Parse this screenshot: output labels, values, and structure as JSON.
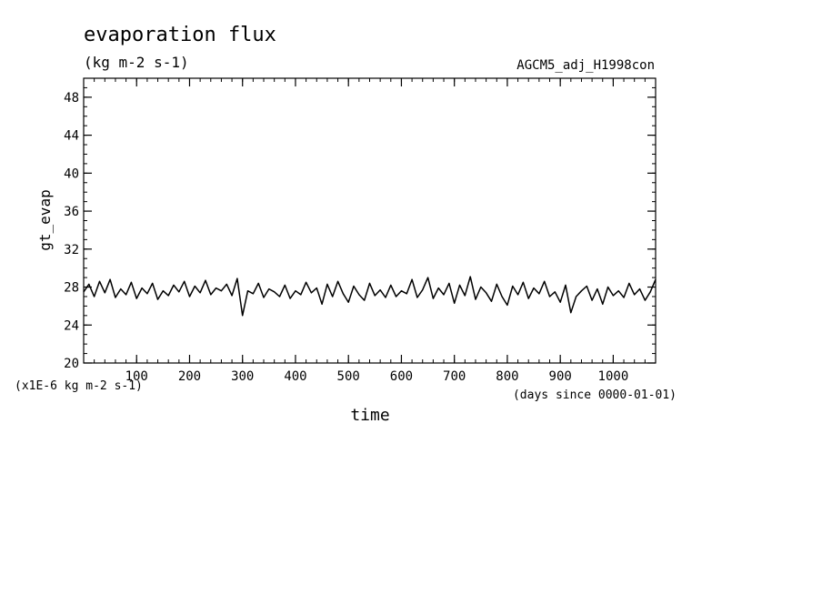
{
  "chart_data": {
    "type": "line",
    "title": "evaporation flux",
    "subtitle": "(kg m-2 s-1)",
    "dataset": "AGCM5_adj_H1998con",
    "xlabel": "time",
    "xunit": "(days since 0000-01-01)",
    "ylabel": "gt_evap",
    "yunit": "(x1E-6 kg m-2 s-1)",
    "xlim": [
      0,
      1080
    ],
    "ylim": [
      20,
      50
    ],
    "xticks": [
      100,
      200,
      300,
      400,
      500,
      600,
      700,
      800,
      900,
      1000
    ],
    "yticks": [
      20,
      24,
      28,
      32,
      36,
      40,
      44,
      48
    ],
    "grid": false,
    "series": [
      {
        "color": "#000000",
        "x": [
          0,
          10,
          20,
          30,
          40,
          50,
          60,
          70,
          80,
          90,
          100,
          110,
          120,
          130,
          140,
          150,
          160,
          170,
          180,
          190,
          200,
          210,
          220,
          230,
          240,
          250,
          260,
          270,
          280,
          290,
          300,
          310,
          320,
          330,
          340,
          350,
          360,
          370,
          380,
          390,
          400,
          410,
          420,
          430,
          440,
          450,
          460,
          470,
          480,
          490,
          500,
          510,
          520,
          530,
          540,
          550,
          560,
          570,
          580,
          590,
          600,
          610,
          620,
          630,
          640,
          650,
          660,
          670,
          680,
          690,
          700,
          710,
          720,
          730,
          740,
          750,
          760,
          770,
          780,
          790,
          800,
          810,
          820,
          830,
          840,
          850,
          860,
          870,
          880,
          890,
          900,
          910,
          920,
          930,
          940,
          950,
          960,
          970,
          980,
          990,
          1000,
          1010,
          1020,
          1030,
          1040,
          1050,
          1060,
          1070,
          1080
        ],
        "y": [
          27.5,
          28.3,
          27.0,
          28.6,
          27.4,
          28.8,
          26.9,
          27.8,
          27.2,
          28.5,
          26.8,
          27.9,
          27.3,
          28.4,
          26.7,
          27.6,
          27.1,
          28.2,
          27.5,
          28.6,
          27.0,
          28.1,
          27.4,
          28.7,
          27.2,
          27.9,
          27.6,
          28.3,
          27.1,
          28.9,
          25.0,
          27.6,
          27.3,
          28.4,
          26.9,
          27.8,
          27.5,
          27.0,
          28.2,
          26.8,
          27.6,
          27.2,
          28.5,
          27.4,
          27.9,
          26.2,
          28.3,
          27.0,
          28.6,
          27.3,
          26.4,
          28.1,
          27.2,
          26.6,
          28.4,
          27.1,
          27.7,
          26.9,
          28.2,
          27.0,
          27.6,
          27.3,
          28.8,
          26.9,
          27.7,
          29.0,
          26.8,
          27.9,
          27.2,
          28.4,
          26.3,
          28.2,
          27.1,
          29.1,
          26.7,
          28.0,
          27.4,
          26.5,
          28.3,
          27.0,
          26.1,
          28.1,
          27.2,
          28.5,
          26.8,
          27.9,
          27.3,
          28.6,
          27.0,
          27.5,
          26.4,
          28.2,
          25.3,
          27.0,
          27.6,
          28.1,
          26.6,
          27.8,
          26.2,
          28.0,
          27.1,
          27.6,
          26.9,
          28.4,
          27.2,
          27.8,
          26.6,
          27.5,
          28.8
        ]
      }
    ]
  }
}
